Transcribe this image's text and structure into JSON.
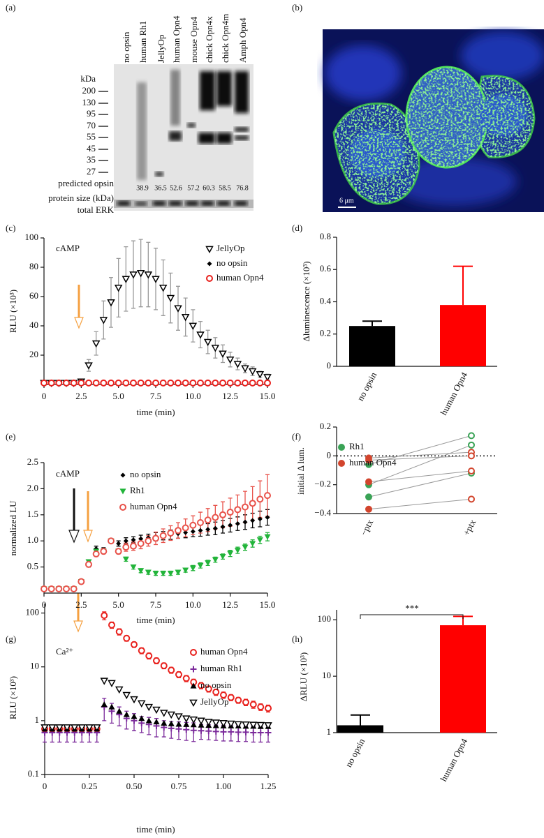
{
  "blot": {
    "panel_label": "(a)",
    "lanes": [
      "no opsin",
      "human Rh1",
      "JellyOp",
      "human Opn4",
      "mouse Opn4",
      "chick Opn4x",
      "chick Opn4m",
      "Amph Opn4"
    ],
    "unit": "kDa",
    "kda_markers": [
      200,
      130,
      95,
      70,
      55,
      45,
      35,
      27
    ],
    "predicted_label": [
      "predicted opsin",
      "protein size (kDa)"
    ],
    "predicted_sizes": [
      null,
      38.9,
      36.5,
      52.6,
      57.2,
      60.3,
      58.5,
      76.8
    ],
    "loading_control": "total ERK"
  },
  "micrograph": {
    "panel_label": "(b)",
    "scale_bar": "6 μm"
  },
  "chart_data": [
    {
      "type": "scatter",
      "panel_label": "(c)",
      "annotation": "cAMP",
      "x_label": "time (min)",
      "y_label": "RLU (×10³)",
      "x": [
        0,
        0.5,
        1,
        1.5,
        2,
        2.5,
        3,
        3.5,
        4,
        4.5,
        5,
        5.5,
        6,
        6.5,
        7,
        7.5,
        8,
        8.5,
        9,
        9.5,
        10,
        10.5,
        11,
        11.5,
        12,
        12.5,
        13,
        13.5,
        14,
        14.5,
        15
      ],
      "xlim": [
        0,
        15
      ],
      "xticks": [
        0,
        2.5,
        {
          "value": 5,
          "label": "5.0"
        },
        7.5,
        {
          "value": 10,
          "label": "10.0"
        },
        12.5,
        {
          "value": 15,
          "label": "15.0"
        }
      ],
      "ylim": [
        0,
        100
      ],
      "yticks": [
        20,
        40,
        60,
        80,
        100
      ],
      "series": [
        {
          "name": "JellyOp",
          "color": "#000000",
          "marker": "tri-down-open",
          "error_color": "#9a9a9a",
          "values": [
            1,
            1,
            1,
            1,
            1,
            2,
            13,
            28,
            44,
            56,
            66,
            72,
            75,
            76,
            75,
            72,
            66,
            59,
            52,
            46,
            40,
            34,
            29,
            25,
            21,
            17,
            14,
            11,
            9,
            7,
            5
          ],
          "errors": [
            0,
            0,
            0,
            0,
            0,
            1,
            4,
            8,
            13,
            17,
            20,
            22,
            23,
            23,
            22,
            21,
            19,
            17,
            15,
            13,
            11,
            9,
            8,
            7,
            6,
            5,
            4,
            3,
            3,
            2,
            2
          ]
        },
        {
          "name": "no opsin",
          "color": "#000000",
          "marker": "diamond",
          "values": [
            1,
            1,
            1,
            1,
            1,
            1,
            1,
            1,
            1,
            1,
            1,
            1,
            1,
            1,
            1,
            1,
            1,
            1,
            1,
            1,
            1,
            1,
            1,
            1,
            1,
            1,
            1,
            1,
            1,
            1,
            1
          ]
        },
        {
          "name": "human Opn4",
          "color": "#e8211d",
          "marker": "circle-open",
          "values": [
            1,
            1,
            1,
            1,
            1,
            1,
            1,
            1,
            1,
            1,
            1,
            1,
            1,
            1,
            1,
            1,
            1,
            1,
            1,
            1,
            1,
            1,
            1,
            1,
            1,
            1,
            1,
            1,
            1,
            1,
            1
          ]
        }
      ]
    },
    {
      "type": "bar",
      "panel_label": "(d)",
      "y_label": "Δluminescence (×10³)",
      "categories": [
        "no opsin",
        "human Opn4"
      ],
      "values": [
        0.25,
        0.38
      ],
      "errors": [
        0.03,
        0.24
      ],
      "colors": [
        "#000000",
        "#ff0000"
      ],
      "ylim": [
        0,
        0.8
      ],
      "yticks": [
        0,
        0.2,
        0.4,
        0.6,
        0.8
      ]
    },
    {
      "type": "scatter",
      "panel_label": "(e)",
      "annotation": "cAMP",
      "x_label": "time (min)",
      "y_label": "normalized LU",
      "x": [
        0,
        0.5,
        1,
        1.5,
        2,
        2.5,
        3,
        3.5,
        4,
        4.5,
        5,
        5.5,
        6,
        6.5,
        7,
        7.5,
        8,
        8.5,
        9,
        9.5,
        10,
        10.5,
        11,
        11.5,
        12,
        12.5,
        13,
        13.5,
        14,
        14.5,
        15
      ],
      "xlim": [
        0,
        15
      ],
      "xticks": [
        0,
        2.5,
        {
          "value": 5,
          "label": "5.0"
        },
        7.5,
        {
          "value": 10,
          "label": "10.0"
        },
        12.5,
        {
          "value": 15,
          "label": "15.0"
        }
      ],
      "ylim": [
        0,
        2.5
      ],
      "yticks": [
        0.5,
        {
          "value": 1,
          "label": "1.0"
        },
        1.5,
        {
          "value": 2,
          "label": "2.0"
        },
        2.5
      ],
      "series": [
        {
          "name": "no opsin",
          "color": "#000000",
          "marker": "diamond",
          "error_color": "#000000",
          "values": [
            0.08,
            0.08,
            0.08,
            0.08,
            0.08,
            0.22,
            0.55,
            0.85,
            0.82,
            1.0,
            0.95,
            1.0,
            1.02,
            1.04,
            1.06,
            1.08,
            1.1,
            1.12,
            1.14,
            1.16,
            1.18,
            1.2,
            1.22,
            1.24,
            1.27,
            1.3,
            1.33,
            1.36,
            1.39,
            1.42,
            1.45
          ],
          "errors": [
            0,
            0,
            0,
            0,
            0,
            0.03,
            0.05,
            0.05,
            0.05,
            0,
            0.05,
            0.06,
            0.06,
            0.07,
            0.07,
            0.08,
            0.08,
            0.09,
            0.09,
            0.1,
            0.1,
            0.11,
            0.11,
            0.12,
            0.12,
            0.13,
            0.13,
            0.14,
            0.14,
            0.15,
            0.15
          ]
        },
        {
          "name": "Rh1",
          "color": "#22b43a",
          "marker": "tri-down",
          "error_color": "#22b43a",
          "values": [
            0.08,
            0.08,
            0.08,
            0.08,
            0.08,
            0.22,
            0.6,
            0.8,
            0.8,
            1.0,
            0.8,
            0.65,
            0.5,
            0.43,
            0.4,
            0.38,
            0.38,
            0.38,
            0.4,
            0.44,
            0.48,
            0.53,
            0.58,
            0.64,
            0.7,
            0.76,
            0.82,
            0.88,
            0.95,
            1.02,
            1.08
          ],
          "errors": [
            0,
            0,
            0,
            0,
            0,
            0.02,
            0.04,
            0.04,
            0.04,
            0,
            0.05,
            0.04,
            0.04,
            0.04,
            0.04,
            0.04,
            0.04,
            0.04,
            0.04,
            0.04,
            0.05,
            0.05,
            0.05,
            0.05,
            0.05,
            0.06,
            0.06,
            0.06,
            0.07,
            0.07,
            0.08
          ]
        },
        {
          "name": "human Opn4",
          "color": "#e8524a",
          "marker": "circle-open",
          "error_color": "#e8524a",
          "values": [
            0.08,
            0.08,
            0.08,
            0.08,
            0.08,
            0.22,
            0.55,
            0.75,
            0.8,
            1.0,
            0.8,
            0.88,
            0.9,
            0.95,
            1.0,
            1.05,
            1.1,
            1.15,
            1.2,
            1.25,
            1.3,
            1.35,
            1.4,
            1.45,
            1.5,
            1.55,
            1.6,
            1.65,
            1.72,
            1.8,
            1.87
          ],
          "errors": [
            0,
            0,
            0,
            0,
            0,
            0.02,
            0.05,
            0.05,
            0.05,
            0,
            0.05,
            0.08,
            0.08,
            0.1,
            0.1,
            0.12,
            0.13,
            0.14,
            0.15,
            0.17,
            0.18,
            0.2,
            0.22,
            0.23,
            0.25,
            0.27,
            0.28,
            0.3,
            0.32,
            0.35,
            0.4
          ]
        }
      ]
    },
    {
      "type": "paired",
      "panel_label": "(f)",
      "y_label": "initial Δ lum.",
      "categories": [
        "−ptx",
        "+ptx"
      ],
      "markers": [
        "circle",
        "circle-open"
      ],
      "zero_line": true,
      "ylim": [
        -0.4,
        0.2
      ],
      "yticks": [
        0.2,
        0,
        {
          "value": -0.2,
          "label": "−0.2"
        },
        {
          "value": -0.4,
          "label": "−0.4"
        }
      ],
      "series": [
        {
          "name": "Rh1",
          "color": "#3aa356",
          "pairs": [
            [
              -0.06,
              0.14
            ],
            [
              -0.2,
              0.075
            ],
            [
              -0.285,
              -0.12
            ]
          ]
        },
        {
          "name": "human Opn4",
          "color": "#d2452d",
          "pairs": [
            [
              -0.015,
              0.025
            ],
            [
              -0.03,
              0
            ],
            [
              -0.18,
              -0.105
            ],
            [
              -0.37,
              -0.3
            ]
          ]
        }
      ]
    },
    {
      "type": "scatter",
      "panel_label": "(g)",
      "annotation": "Ca²⁺",
      "x_label": "time (min)",
      "y_label": "RLU (×10³)",
      "log_y": true,
      "x": [
        0,
        0.042,
        0.083,
        0.125,
        0.167,
        0.208,
        0.25,
        0.292,
        0.333,
        0.375,
        0.417,
        0.458,
        0.5,
        0.542,
        0.583,
        0.625,
        0.667,
        0.708,
        0.75,
        0.792,
        0.833,
        0.875,
        0.917,
        0.958,
        1,
        1.042,
        1.083,
        1.125,
        1.167,
        1.208,
        1.25
      ],
      "xlim": [
        0,
        1.25
      ],
      "xticks": [
        0,
        0.25,
        {
          "value": 0.5,
          "label": "0.50"
        },
        0.75,
        {
          "value": 1,
          "label": "1.00"
        },
        1.25
      ],
      "ylim": [
        0.1,
        150
      ],
      "yticks": [
        0.1,
        1,
        10,
        100
      ],
      "series": [
        {
          "name": "human Opn4",
          "color": "#e8211d",
          "marker": "circle-open",
          "error_color": "#e8211d",
          "values": [
            0.7,
            0.7,
            0.7,
            0.7,
            0.7,
            0.7,
            0.7,
            0.7,
            90,
            60,
            45,
            34,
            26,
            20,
            16,
            13,
            10.5,
            8.7,
            7.2,
            6.1,
            5.2,
            4.5,
            3.9,
            3.4,
            3.0,
            2.7,
            2.4,
            2.2,
            2.0,
            1.8,
            1.7
          ],
          "errors": [
            0.1,
            0.1,
            0.1,
            0.1,
            0.1,
            0.1,
            0.1,
            0.1,
            15,
            8,
            6,
            4,
            3,
            2.5,
            2,
            1.6,
            1.3,
            1.1,
            0.9,
            0.8,
            0.7,
            0.6,
            0.5,
            0.45,
            0.4,
            0.35,
            0.3,
            0.3,
            0.3,
            0.25,
            0.25
          ]
        },
        {
          "name": "human Rh1",
          "color": "#7b2a9b",
          "marker": "plus",
          "error_color": "#7b2a9b",
          "values": [
            0.6,
            0.6,
            0.6,
            0.6,
            0.6,
            0.6,
            0.6,
            0.6,
            1.8,
            1.5,
            1.3,
            1.1,
            1.0,
            0.9,
            0.85,
            0.8,
            0.75,
            0.72,
            0.7,
            0.68,
            0.66,
            0.65,
            0.64,
            0.63,
            0.62,
            0.62,
            0.61,
            0.61,
            0.6,
            0.6,
            0.6
          ],
          "errors": [
            0.2,
            0.2,
            0.2,
            0.2,
            0.2,
            0.2,
            0.2,
            0.2,
            0.8,
            0.6,
            0.5,
            0.4,
            0.35,
            0.3,
            0.3,
            0.3,
            0.25,
            0.25,
            0.25,
            0.25,
            0.25,
            0.2,
            0.2,
            0.2,
            0.2,
            0.2,
            0.2,
            0.2,
            0.2,
            0.2,
            0.2
          ]
        },
        {
          "name": "no opsin",
          "color": "#000000",
          "marker": "tri-up",
          "values": [
            0.7,
            0.7,
            0.7,
            0.7,
            0.7,
            0.7,
            0.7,
            0.7,
            2.0,
            1.8,
            1.5,
            1.3,
            1.2,
            1.1,
            1.0,
            0.95,
            0.9,
            0.88,
            0.86,
            0.85,
            0.84,
            0.83,
            0.82,
            0.81,
            0.8,
            0.8,
            0.8,
            0.79,
            0.79,
            0.78,
            0.78
          ]
        },
        {
          "name": "JellyOp",
          "color": "#000000",
          "marker": "tri-down-open",
          "values": [
            0.75,
            0.75,
            0.75,
            0.75,
            0.75,
            0.75,
            0.75,
            0.75,
            5.5,
            5.0,
            3.8,
            3.0,
            2.5,
            2.1,
            1.8,
            1.6,
            1.4,
            1.3,
            1.2,
            1.1,
            1.05,
            1.0,
            0.95,
            0.92,
            0.9,
            0.88,
            0.86,
            0.85,
            0.84,
            0.83,
            0.82
          ]
        }
      ]
    },
    {
      "type": "bar",
      "panel_label": "(h)",
      "y_label": "ΔRLU (×10³)",
      "annotation": "***",
      "log_y": true,
      "categories": [
        "no opsin",
        "human Opn4"
      ],
      "values": [
        1.35,
        80
      ],
      "errors": [
        0.7,
        35
      ],
      "colors": [
        "#000000",
        "#ff0000"
      ],
      "ylim": [
        1,
        150
      ],
      "yticks": [
        1,
        10,
        100
      ]
    }
  ]
}
